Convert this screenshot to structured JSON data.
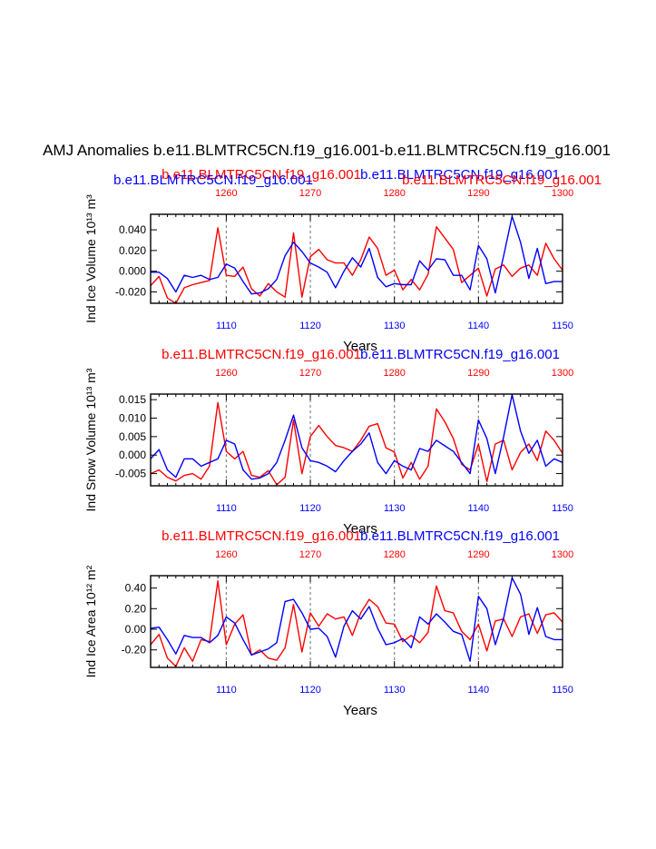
{
  "figure": {
    "title": "AMJ Anomalies b.e11.BLMTRC5CN.f19_g16.001-b.e11.BLMTRC5CN.f19_g16.001",
    "colors": {
      "case1": "#ff0000",
      "case2": "#0000ff",
      "grid": "#888888",
      "axis": "#000000"
    }
  },
  "chart_data": [
    {
      "type": "line",
      "ylabel": "Ind Ice Volume 10¹³ m³",
      "xlabel": "Years",
      "ylim": [
        -0.031,
        0.055
      ],
      "yticks": [
        -0.02,
        0.0,
        0.02,
        0.04
      ],
      "ytick_labels": [
        "-0.020",
        "0.000",
        "0.020",
        "0.040"
      ],
      "bottom_axis": {
        "range": [
          1101,
          1150
        ],
        "ticks": [
          1110,
          1120,
          1130,
          1140,
          1150
        ],
        "color": "blue"
      },
      "top_axis": {
        "range": [
          1251,
          1300
        ],
        "ticks": [
          1260,
          1270,
          1280,
          1290,
          1300
        ],
        "color": "red"
      },
      "top_labels": [
        "b.e11.BLMTRC5CN.f19_g16.001",
        "b.e11.BLMTRC5CN.f19_g16.001"
      ],
      "extra_label": "b.e11.BLMTRC5CN.f19_g16.001",
      "series": [
        {
          "name": "b.e11.BLMTRC5CN.f19_g16.001 (1251-1300)",
          "color": "red",
          "x": [
            1251,
            1252,
            1253,
            1254,
            1255,
            1256,
            1257,
            1258,
            1259,
            1260,
            1261,
            1262,
            1263,
            1264,
            1265,
            1266,
            1267,
            1268,
            1269,
            1270,
            1271,
            1272,
            1273,
            1274,
            1275,
            1276,
            1277,
            1278,
            1279,
            1280,
            1281,
            1282,
            1283,
            1284,
            1285,
            1286,
            1287,
            1288,
            1289,
            1290,
            1291,
            1292,
            1293,
            1294,
            1295,
            1296,
            1297,
            1298,
            1299,
            1300
          ],
          "values": [
            -0.014,
            -0.005,
            -0.026,
            -0.031,
            -0.016,
            -0.013,
            -0.011,
            -0.009,
            0.042,
            -0.004,
            -0.005,
            0.004,
            -0.017,
            -0.024,
            -0.012,
            -0.02,
            -0.025,
            0.037,
            -0.025,
            0.014,
            0.021,
            0.011,
            0.008,
            0.008,
            -0.004,
            0.011,
            0.033,
            0.022,
            -0.004,
            0.001,
            -0.018,
            -0.008,
            -0.018,
            -0.003,
            0.043,
            0.032,
            0.021,
            -0.011,
            -0.004,
            0.003,
            -0.024,
            0.002,
            0.006,
            -0.005,
            0.003,
            0.006,
            -0.004,
            0.027,
            0.012,
            0.001
          ]
        },
        {
          "name": "b.e11.BLMTRC5CN.f19_g16.001 (1101-1150)",
          "color": "blue",
          "x": [
            1101,
            1102,
            1103,
            1104,
            1105,
            1106,
            1107,
            1108,
            1109,
            1110,
            1111,
            1112,
            1113,
            1114,
            1115,
            1116,
            1117,
            1118,
            1119,
            1120,
            1121,
            1122,
            1123,
            1124,
            1125,
            1126,
            1127,
            1128,
            1129,
            1130,
            1131,
            1132,
            1133,
            1134,
            1135,
            1136,
            1137,
            1138,
            1139,
            1140,
            1141,
            1142,
            1143,
            1144,
            1145,
            1146,
            1147,
            1148,
            1149,
            1150
          ],
          "values": [
            -0.001,
            -0.001,
            -0.007,
            -0.02,
            -0.004,
            -0.006,
            -0.004,
            -0.008,
            -0.006,
            0.007,
            0.003,
            -0.01,
            -0.022,
            -0.021,
            -0.017,
            -0.008,
            0.015,
            0.028,
            0.019,
            0.008,
            0.004,
            -0.001,
            -0.016,
            0.0,
            0.013,
            0.004,
            0.022,
            -0.006,
            -0.015,
            -0.012,
            -0.013,
            -0.013,
            0.01,
            0.001,
            0.012,
            0.011,
            -0.004,
            -0.004,
            -0.018,
            0.025,
            0.012,
            -0.021,
            0.015,
            0.053,
            0.028,
            -0.007,
            0.022,
            -0.012,
            -0.01,
            -0.01
          ]
        }
      ]
    },
    {
      "type": "line",
      "ylabel": "Ind Snow Volume 10¹³ m³",
      "xlabel": "Years",
      "ylim": [
        -0.0083,
        0.0165
      ],
      "yticks": [
        -0.005,
        0.0,
        0.005,
        0.01,
        0.015
      ],
      "ytick_labels": [
        "-0.005",
        "0.000",
        "0.005",
        "0.010",
        "0.015"
      ],
      "bottom_axis": {
        "range": [
          1101,
          1150
        ],
        "ticks": [
          1110,
          1120,
          1130,
          1140,
          1150
        ],
        "color": "blue"
      },
      "top_axis": {
        "range": [
          1251,
          1300
        ],
        "ticks": [
          1260,
          1270,
          1280,
          1290,
          1300
        ],
        "color": "red"
      },
      "top_labels": [
        "b.e11.BLMTRC5CN.f19_g16.001",
        "b.e11.BLMTRC5CN.f19_g16.001"
      ],
      "series": [
        {
          "name": "b.e11.BLMTRC5CN.f19_g16.001 (1251-1300)",
          "color": "red",
          "x": [
            1251,
            1252,
            1253,
            1254,
            1255,
            1256,
            1257,
            1258,
            1259,
            1260,
            1261,
            1262,
            1263,
            1264,
            1265,
            1266,
            1267,
            1268,
            1269,
            1270,
            1271,
            1272,
            1273,
            1274,
            1275,
            1276,
            1277,
            1278,
            1279,
            1280,
            1281,
            1282,
            1283,
            1284,
            1285,
            1286,
            1287,
            1288,
            1289,
            1290,
            1291,
            1292,
            1293,
            1294,
            1295,
            1296,
            1297,
            1298,
            1299,
            1300
          ],
          "values": [
            -0.005,
            -0.004,
            -0.006,
            -0.007,
            -0.0055,
            -0.005,
            -0.0065,
            -0.003,
            0.0142,
            0.001,
            -0.001,
            0.001,
            -0.0055,
            -0.006,
            -0.0042,
            -0.008,
            -0.006,
            0.0095,
            -0.005,
            0.005,
            0.008,
            0.005,
            0.0026,
            0.002,
            0.001,
            0.004,
            0.0078,
            0.0085,
            0.002,
            0.0008,
            -0.0062,
            -0.002,
            -0.0065,
            -0.003,
            0.0125,
            0.009,
            0.0045,
            -0.0025,
            -0.004,
            0.003,
            -0.0072,
            0.003,
            0.004,
            -0.004,
            0.0007,
            0.003,
            -0.0015,
            0.0065,
            0.004,
            0.0005
          ]
        },
        {
          "name": "b.e11.BLMTRC5CN.f19_g16.001 (1101-1150)",
          "color": "blue",
          "x": [
            1101,
            1102,
            1103,
            1104,
            1105,
            1106,
            1107,
            1108,
            1109,
            1110,
            1111,
            1112,
            1113,
            1114,
            1115,
            1116,
            1117,
            1118,
            1119,
            1120,
            1121,
            1122,
            1123,
            1124,
            1125,
            1126,
            1127,
            1128,
            1129,
            1130,
            1131,
            1132,
            1133,
            1134,
            1135,
            1136,
            1137,
            1138,
            1139,
            1140,
            1141,
            1142,
            1143,
            1144,
            1145,
            1146,
            1147,
            1148,
            1149,
            1150
          ],
          "values": [
            -0.001,
            0.0015,
            -0.004,
            -0.006,
            -0.001,
            -0.001,
            -0.003,
            -0.002,
            -0.001,
            0.004,
            0.003,
            -0.004,
            -0.0065,
            -0.0062,
            -0.005,
            -0.002,
            0.004,
            0.0108,
            0.002,
            -0.0015,
            -0.002,
            -0.003,
            -0.0045,
            -0.0015,
            0.001,
            0.003,
            0.006,
            -0.002,
            -0.005,
            -0.0015,
            -0.003,
            -0.004,
            0.0018,
            0.001,
            0.004,
            0.0025,
            0.001,
            -0.002,
            -0.005,
            0.0095,
            0.0045,
            -0.005,
            0.005,
            0.0163,
            0.0065,
            0.0005,
            0.004,
            -0.003,
            -0.001,
            -0.002
          ]
        }
      ]
    },
    {
      "type": "line",
      "ylabel": "Ind Ice Area 10¹² m²",
      "xlabel": "Years",
      "ylim": [
        -0.37,
        0.52
      ],
      "yticks": [
        -0.2,
        0.0,
        0.2,
        0.4
      ],
      "ytick_labels": [
        "-0.20",
        "0.00",
        "0.20",
        "0.40"
      ],
      "bottom_axis": {
        "range": [
          1101,
          1150
        ],
        "ticks": [
          1110,
          1120,
          1130,
          1140,
          1150
        ],
        "color": "blue"
      },
      "top_axis": {
        "range": [
          1251,
          1300
        ],
        "ticks": [
          1260,
          1270,
          1280,
          1290,
          1300
        ],
        "color": "red"
      },
      "top_labels": [
        "b.e11.BLMTRC5CN.f19_g16.001",
        "b.e11.BLMTRC5CN.f19_g16.001"
      ],
      "series": [
        {
          "name": "b.e11.BLMTRC5CN.f19_g16.001 (1251-1300)",
          "color": "red",
          "x": [
            1251,
            1252,
            1253,
            1254,
            1255,
            1256,
            1257,
            1258,
            1259,
            1260,
            1261,
            1262,
            1263,
            1264,
            1265,
            1266,
            1267,
            1268,
            1269,
            1270,
            1271,
            1272,
            1273,
            1274,
            1275,
            1276,
            1277,
            1278,
            1279,
            1280,
            1281,
            1282,
            1283,
            1284,
            1285,
            1286,
            1287,
            1288,
            1289,
            1290,
            1291,
            1292,
            1293,
            1294,
            1295,
            1296,
            1297,
            1298,
            1299,
            1300
          ],
          "values": [
            -0.15,
            -0.05,
            -0.28,
            -0.36,
            -0.18,
            -0.31,
            -0.1,
            -0.12,
            0.47,
            -0.15,
            0.05,
            0.14,
            -0.25,
            -0.2,
            -0.28,
            -0.3,
            -0.18,
            0.24,
            -0.22,
            0.16,
            0.03,
            0.15,
            0.1,
            0.12,
            -0.06,
            0.16,
            0.29,
            0.22,
            0.06,
            0.05,
            -0.12,
            -0.06,
            -0.13,
            -0.03,
            0.42,
            0.18,
            0.16,
            -0.02,
            -0.1,
            0.05,
            -0.21,
            0.08,
            0.1,
            -0.07,
            0.12,
            0.15,
            -0.04,
            0.14,
            0.16,
            0.07
          ]
        },
        {
          "name": "b.e11.BLMTRC5CN.f19_g16.001 (1101-1150)",
          "color": "blue",
          "x": [
            1101,
            1102,
            1103,
            1104,
            1105,
            1106,
            1107,
            1108,
            1109,
            1110,
            1111,
            1112,
            1113,
            1114,
            1115,
            1116,
            1117,
            1118,
            1119,
            1120,
            1121,
            1122,
            1123,
            1124,
            1125,
            1126,
            1127,
            1128,
            1129,
            1130,
            1131,
            1132,
            1133,
            1134,
            1135,
            1136,
            1137,
            1138,
            1139,
            1140,
            1141,
            1142,
            1143,
            1144,
            1145,
            1146,
            1147,
            1148,
            1149,
            1150
          ],
          "values": [
            0.01,
            0.02,
            -0.1,
            -0.24,
            -0.06,
            -0.08,
            -0.08,
            -0.13,
            -0.06,
            0.12,
            0.06,
            -0.1,
            -0.25,
            -0.22,
            -0.19,
            -0.13,
            0.27,
            0.29,
            0.16,
            0.0,
            0.01,
            -0.07,
            -0.27,
            0.03,
            0.18,
            0.1,
            0.22,
            0.01,
            -0.15,
            -0.13,
            -0.09,
            -0.18,
            0.12,
            0.05,
            0.15,
            0.07,
            -0.02,
            -0.05,
            -0.31,
            0.32,
            0.2,
            -0.15,
            0.11,
            0.5,
            0.34,
            -0.05,
            0.21,
            -0.07,
            -0.1,
            -0.1
          ]
        }
      ]
    }
  ]
}
